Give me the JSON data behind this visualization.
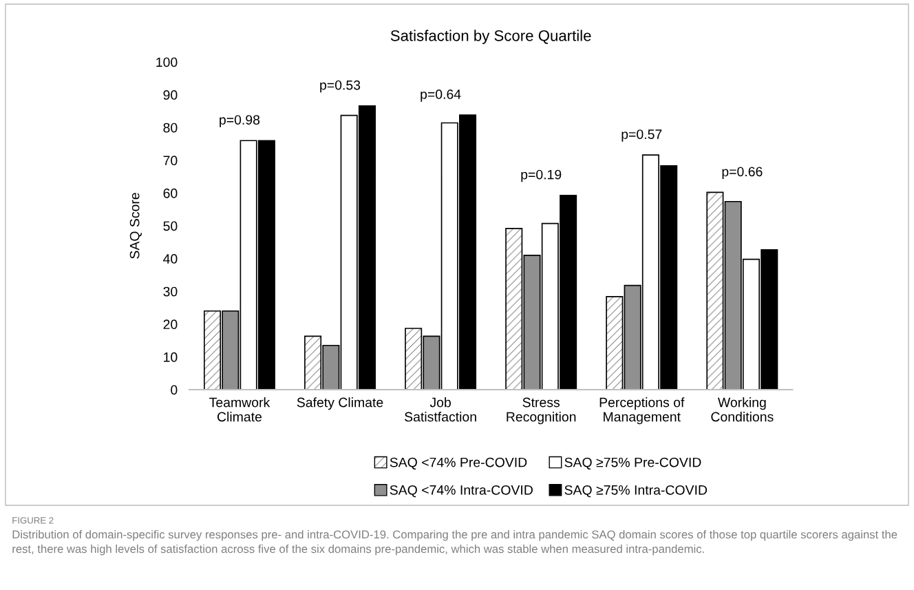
{
  "chart_data": {
    "type": "bar",
    "title": "Satisfaction by Score Quartile",
    "ylabel": "SAQ Score",
    "categories": [
      "Teamwork\nClimate",
      "Safety Climate",
      "Job\nSatistfaction",
      "Stress\nRecognition",
      "Perceptions of\nManagement",
      "Working\nConditions"
    ],
    "series": [
      {
        "name": "SAQ <74% Pre-COVID",
        "color": "#000000",
        "values": [
          24,
          16.3,
          18.7,
          49.2,
          28.4,
          60.2
        ]
      },
      {
        "name": "SAQ <74% Intra-COVID",
        "color": "#909090",
        "values": [
          24,
          13.5,
          16.3,
          41,
          31.8,
          57.4
        ]
      },
      {
        "name": "SAQ ≥75% Pre-COVID",
        "color": "#ffffff",
        "values": [
          76,
          83.7,
          81.4,
          50.7,
          71.6,
          39.8
        ]
      },
      {
        "name": "SAQ ≥75% Intra-COVID",
        "color": "#000000",
        "values": [
          76,
          86.6,
          83.8,
          59.3,
          68.3,
          42.7
        ]
      }
    ],
    "ylim": [
      0,
      100
    ],
    "yticks": [
      0,
      10,
      20,
      30,
      40,
      50,
      60,
      70,
      80,
      90,
      100
    ],
    "grid": false,
    "legend": "bottom",
    "annotations": [
      "p=0.98",
      "p=0.53",
      "p=0.64",
      "p=0.19",
      "p=0.57",
      "p=0.66",
      "FIGURE 2",
      "Distribution of domain-specific survey responses pre- and intra-COVID-19. Comparing the pre and intra pandemic SAQ domain scores of those top quartile scorers against the rest, there was high levels of satisfaction across five of the six domains pre-pandemic, which was stable when measured intra-pandemic."
    ]
  }
}
